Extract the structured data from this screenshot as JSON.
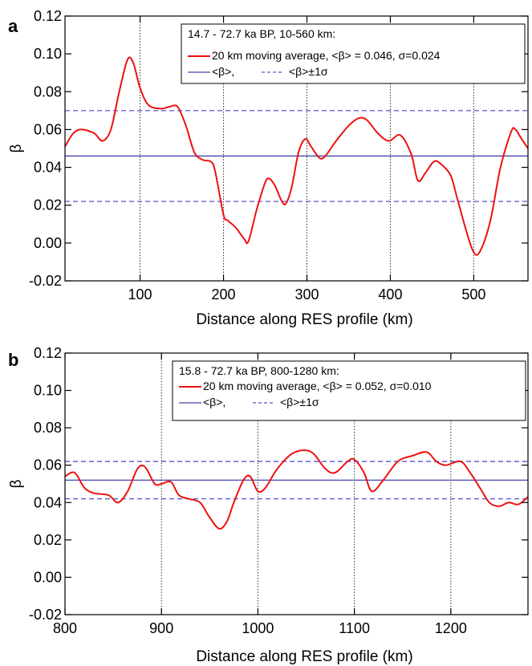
{
  "chart_data": [
    {
      "panel_label": "a",
      "type": "line",
      "xlabel": "Distance along RES profile (km)",
      "ylabel": "β",
      "xlim": [
        10,
        565
      ],
      "ylim": [
        -0.02,
        0.12
      ],
      "xticks": [
        100,
        200,
        300,
        400,
        500
      ],
      "yticks": [
        -0.02,
        0.0,
        0.02,
        0.04,
        0.06,
        0.08,
        0.1,
        0.12
      ],
      "ytick_labels": [
        "-0.02",
        "0.00",
        "0.02",
        "0.04",
        "0.06",
        "0.08",
        "0.10",
        "0.12"
      ],
      "grid": "vertical dotted lines at x ticks",
      "legend": {
        "placement": "top-right",
        "title": "14.7 - 72.7 ka BP, 10-560 km:",
        "line1": "20 km moving average,  <β> = 0.046, σ=0.024",
        "line2_a": "<β>,",
        "line2_b": "<β>±1σ"
      },
      "mean": 0.046,
      "sigma": 0.024,
      "colors": {
        "series": "#ee1111",
        "mean": "#4444aa",
        "sigma": "#5555cc"
      },
      "series": [
        {
          "x": [
            10,
            20,
            30,
            45,
            55,
            65,
            75,
            85,
            92,
            100,
            110,
            125,
            135,
            145,
            155,
            165,
            175,
            185,
            190,
            200,
            205,
            215,
            225,
            230,
            240,
            250,
            255,
            262,
            270,
            275,
            282,
            290,
            298,
            305,
            315,
            322,
            335,
            350,
            362,
            372,
            385,
            398,
            412,
            425,
            433,
            442,
            452,
            460,
            472,
            480,
            490,
            500,
            508,
            520,
            532,
            545,
            550,
            556,
            565
          ],
          "y": [
            0.051,
            0.058,
            0.06,
            0.058,
            0.054,
            0.06,
            0.08,
            0.097,
            0.095,
            0.082,
            0.073,
            0.071,
            0.072,
            0.072,
            0.062,
            0.048,
            0.044,
            0.043,
            0.038,
            0.015,
            0.012,
            0.008,
            0.002,
            0.001,
            0.018,
            0.032,
            0.034,
            0.03,
            0.022,
            0.021,
            0.03,
            0.048,
            0.055,
            0.051,
            0.045,
            0.046,
            0.054,
            0.062,
            0.066,
            0.065,
            0.058,
            0.054,
            0.057,
            0.047,
            0.033,
            0.037,
            0.043,
            0.042,
            0.036,
            0.024,
            0.008,
            -0.005,
            -0.004,
            0.012,
            0.04,
            0.059,
            0.06,
            0.056,
            0.05
          ]
        }
      ]
    },
    {
      "panel_label": "b",
      "type": "line",
      "xlabel": "Distance along RES profile (km)",
      "ylabel": "β",
      "xlim": [
        800,
        1280
      ],
      "ylim": [
        -0.02,
        0.12
      ],
      "xticks": [
        800,
        900,
        1000,
        1100,
        1200
      ],
      "yticks": [
        -0.02,
        0.0,
        0.02,
        0.04,
        0.06,
        0.08,
        0.1,
        0.12
      ],
      "ytick_labels": [
        "-0.02",
        "0.00",
        "0.02",
        "0.04",
        "0.06",
        "0.08",
        "0.10",
        "0.12"
      ],
      "grid": "vertical dotted lines at x ticks",
      "legend": {
        "placement": "top-right",
        "title": "15.8 - 72.7 ka BP, 800-1280 km:",
        "line1": "20 km moving average,  <β> = 0.052, σ=0.010",
        "line2_a": "<β>,",
        "line2_b": "<β>±1σ"
      },
      "mean": 0.052,
      "sigma": 0.01,
      "colors": {
        "series": "#ee1111",
        "mean": "#4444aa",
        "sigma": "#5555cc"
      },
      "series": [
        {
          "x": [
            800,
            810,
            820,
            830,
            845,
            855,
            865,
            875,
            883,
            893,
            900,
            910,
            918,
            928,
            940,
            950,
            960,
            968,
            975,
            985,
            992,
            1000,
            1008,
            1020,
            1035,
            1048,
            1058,
            1070,
            1080,
            1093,
            1100,
            1110,
            1118,
            1130,
            1145,
            1160,
            1175,
            1185,
            1195,
            1210,
            1220,
            1230,
            1240,
            1250,
            1260,
            1270,
            1280
          ],
          "y": [
            0.054,
            0.056,
            0.048,
            0.045,
            0.044,
            0.04,
            0.046,
            0.058,
            0.059,
            0.05,
            0.05,
            0.051,
            0.044,
            0.042,
            0.04,
            0.032,
            0.026,
            0.03,
            0.04,
            0.052,
            0.054,
            0.046,
            0.048,
            0.058,
            0.066,
            0.068,
            0.066,
            0.058,
            0.056,
            0.062,
            0.063,
            0.056,
            0.046,
            0.052,
            0.062,
            0.065,
            0.067,
            0.062,
            0.06,
            0.062,
            0.056,
            0.048,
            0.04,
            0.038,
            0.04,
            0.039,
            0.043
          ]
        }
      ]
    }
  ]
}
